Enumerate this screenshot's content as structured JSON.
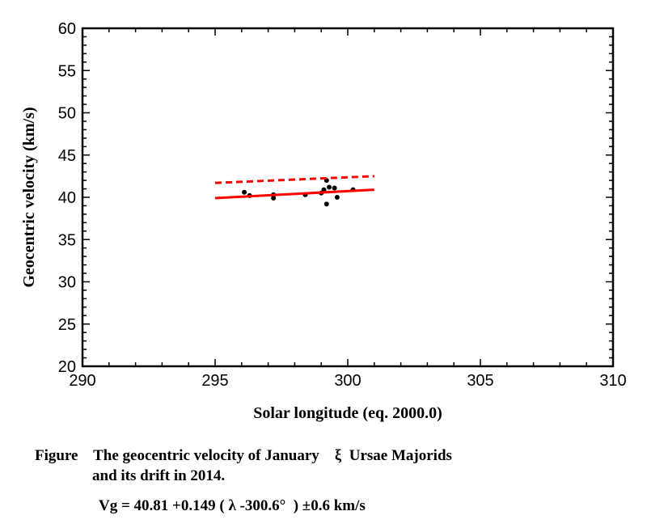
{
  "chart_data": {
    "type": "scatter",
    "xlabel": "Solar longitude (eq. 2000.0)",
    "ylabel": "Geocentric velocity (km/s)",
    "xlim": [
      290,
      310
    ],
    "ylim": [
      20,
      60
    ],
    "x_ticks": [
      "290",
      "295",
      "300",
      "305",
      "310"
    ],
    "y_ticks": [
      "20",
      "25",
      "30",
      "35",
      "40",
      "45",
      "50",
      "55",
      "60"
    ],
    "colors": {
      "points": "#000000",
      "fit": "#ff0000",
      "drift": "#ff0000"
    },
    "series": [
      {
        "name": "observed meteors",
        "kind": "points",
        "points": [
          [
            296.1,
            40.6
          ],
          [
            296.3,
            40.2
          ],
          [
            297.2,
            40.3
          ],
          [
            297.2,
            39.9
          ],
          [
            298.4,
            40.3
          ],
          [
            299.0,
            40.5
          ],
          [
            299.1,
            40.9
          ],
          [
            299.2,
            42.0
          ],
          [
            299.2,
            39.2
          ],
          [
            299.3,
            41.2
          ],
          [
            299.5,
            41.1
          ],
          [
            299.6,
            40.0
          ],
          [
            300.2,
            40.9
          ]
        ]
      },
      {
        "name": "fit",
        "kind": "solid-line",
        "points": [
          [
            295.0,
            39.9
          ],
          [
            301.0,
            40.9
          ]
        ]
      },
      {
        "name": "drift",
        "kind": "dashed-line",
        "points": [
          [
            295.0,
            41.7
          ],
          [
            301.0,
            42.5
          ]
        ]
      }
    ]
  },
  "caption": {
    "line1": "Figure    The geocentric velocity of January    ξ  Ursae Majorids",
    "line2": "and its drift in 2014.",
    "line3": "Vg = 40.81 +0.149 ( λ -300.6°  ) ±0.6 km/s"
  }
}
